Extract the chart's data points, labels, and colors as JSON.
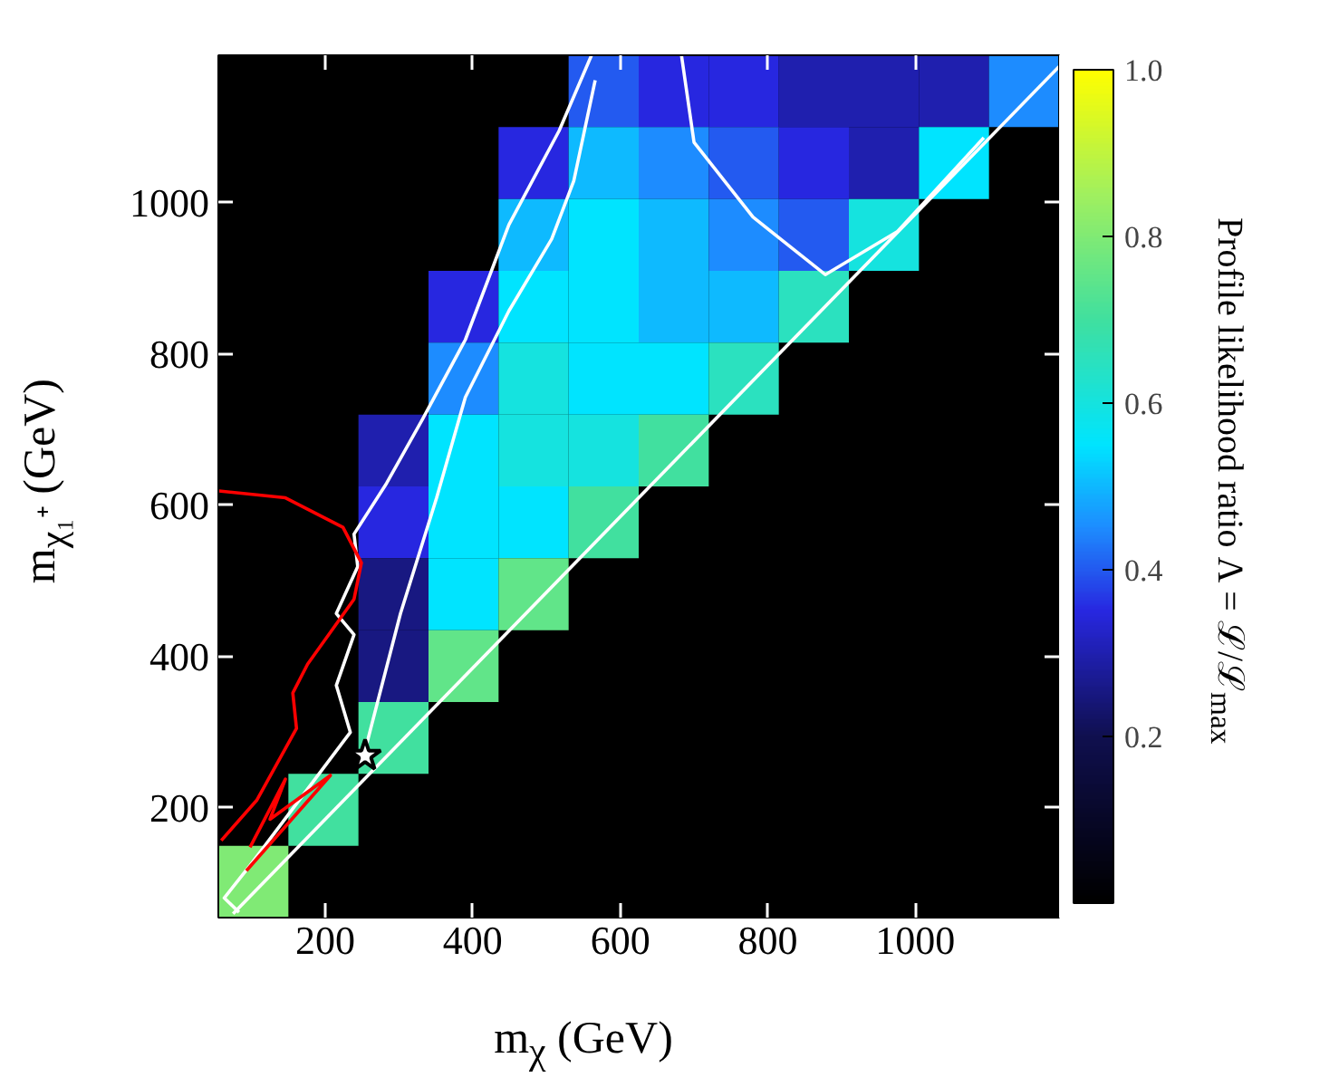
{
  "chart_data": {
    "type": "heatmap",
    "xlabel": "m$_{χ}$ (GeV)",
    "ylabel": "m$_{χ₁⁺}$ (GeV)",
    "clabel": "Profile likelihood ratio Λ = ℒ/ℒ$_{max}$",
    "x": [
      102.5,
      197.5,
      292.5,
      387.5,
      482.5,
      577.5,
      672.5,
      767.5,
      862.5,
      957.5,
      1052.5,
      1147.5
    ],
    "y": [
      1147.5,
      1052.5,
      957.5,
      862.5,
      767.5,
      672.5,
      577.5,
      482.5,
      387.5,
      292.5,
      197.5,
      102.5
    ],
    "cells": [
      [
        null,
        null,
        null,
        null,
        null,
        0.4,
        0.35,
        0.35,
        0.3,
        0.3,
        0.3,
        0.45
      ],
      [
        null,
        null,
        null,
        null,
        0.35,
        0.5,
        0.45,
        0.4,
        0.35,
        0.3,
        0.55,
        null
      ],
      [
        null,
        null,
        null,
        null,
        0.5,
        0.55,
        0.5,
        0.45,
        0.4,
        0.6,
        null,
        null
      ],
      [
        null,
        null,
        null,
        0.35,
        0.55,
        0.55,
        0.5,
        0.5,
        0.65,
        null,
        null,
        null
      ],
      [
        null,
        null,
        null,
        0.45,
        0.6,
        0.55,
        0.55,
        0.65,
        null,
        null,
        null,
        null
      ],
      [
        null,
        null,
        0.3,
        0.55,
        0.6,
        0.6,
        0.7,
        null,
        null,
        null,
        null,
        null
      ],
      [
        null,
        null,
        0.35,
        0.55,
        0.55,
        0.7,
        null,
        null,
        null,
        null,
        null,
        null
      ],
      [
        null,
        null,
        0.25,
        0.55,
        0.75,
        null,
        null,
        null,
        null,
        null,
        null,
        null
      ],
      [
        null,
        null,
        0.25,
        0.75,
        null,
        null,
        null,
        null,
        null,
        null,
        null,
        null
      ],
      [
        null,
        null,
        0.7,
        null,
        null,
        null,
        null,
        null,
        null,
        null,
        null,
        null
      ],
      [
        null,
        0.7,
        null,
        null,
        null,
        null,
        null,
        null,
        null,
        null,
        null,
        null
      ],
      [
        0.8,
        null,
        null,
        null,
        null,
        null,
        null,
        null,
        null,
        null,
        null,
        null
      ]
    ],
    "clim": [
      0,
      1.0
    ],
    "cticks": [
      0.2,
      0.4,
      0.6,
      0.8,
      {
        "value": 1.0,
        "label": "1.0"
      }
    ],
    "xlim": [
      55,
      1195
    ],
    "ylim": [
      55,
      1195
    ],
    "xticks": [
      200,
      400,
      600,
      800,
      1000
    ],
    "yticks": [
      200,
      400,
      600,
      800,
      1000
    ],
    "grid": false,
    "series": [
      {
        "type": "line",
        "color": "#ffffff",
        "x": [
          83,
          63,
          98,
          234,
          215,
          239,
          215,
          244,
          239,
          283,
          332,
          390,
          449,
          517,
          561
        ],
        "values": [
          62,
          81,
          124,
          300,
          362,
          429,
          457,
          519,
          562,
          629,
          714,
          819,
          971,
          1095,
          1195
        ]
      },
      {
        "type": "line",
        "color": "#ffffff",
        "x": [
          75,
          1195
        ],
        "values": [
          60,
          1180
        ]
      },
      {
        "type": "line",
        "color": "#ffffff",
        "x": [
          255,
          302,
          351,
          390,
          449,
          507,
          537,
          566
        ],
        "values": [
          280,
          457,
          610,
          743,
          857,
          952,
          1029,
          1162
        ]
      },
      {
        "type": "line",
        "color": "#ffffff",
        "x": [
          683,
          700,
          780,
          878,
          976,
          1093
        ],
        "values": [
          1195,
          1080,
          981,
          905,
          962,
          1086
        ]
      },
      {
        "type": "line",
        "color": "#ff0000",
        "x": [
          56,
          146,
          224,
          249,
          239,
          176,
          156,
          161,
          107,
          59
        ],
        "values": [
          619,
          610,
          571,
          524,
          476,
          390,
          352,
          305,
          210,
          157
        ]
      },
      {
        "type": "line",
        "color": "#ff0000",
        "x": [
          98,
          146,
          125,
          207,
          93
        ],
        "values": [
          148,
          238,
          185,
          243,
          117
        ]
      },
      {
        "type": "scatter",
        "marker": "star",
        "color": "#ffffff",
        "x": [
          254
        ],
        "values": [
          269
        ]
      }
    ]
  }
}
